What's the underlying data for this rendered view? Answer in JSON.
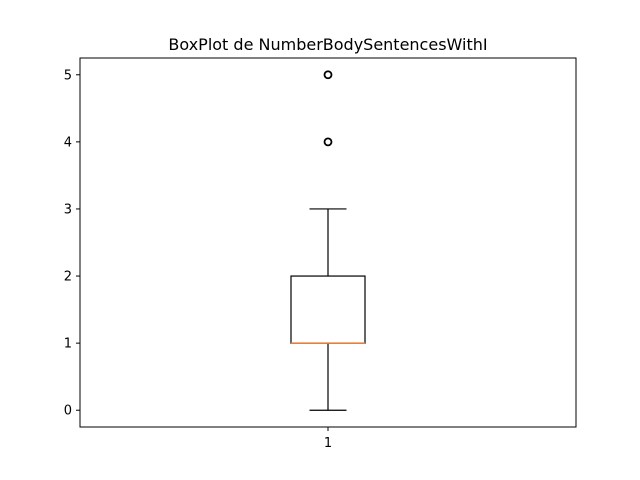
{
  "chart_data": {
    "type": "box",
    "title": "BoxPlot de NumberBodySentencesWithI",
    "xlabel": "",
    "ylabel": "",
    "categories": [
      "1"
    ],
    "boxes": [
      {
        "label": "1",
        "whisker_low": 0,
        "q1": 1,
        "median": 1,
        "q3": 2,
        "whisker_high": 3,
        "outliers": [
          4,
          5
        ]
      }
    ],
    "y_ticks": [
      0,
      1,
      2,
      3,
      4,
      5
    ],
    "y_tick_labels": [
      "0",
      "1",
      "2",
      "3",
      "4",
      "5"
    ],
    "ylim": [
      -0.25,
      5.25
    ],
    "grid": false,
    "colors": {
      "box": "#000000",
      "median": "#e8823c",
      "whisker": "#000000",
      "outlier_edge": "#000000"
    }
  }
}
